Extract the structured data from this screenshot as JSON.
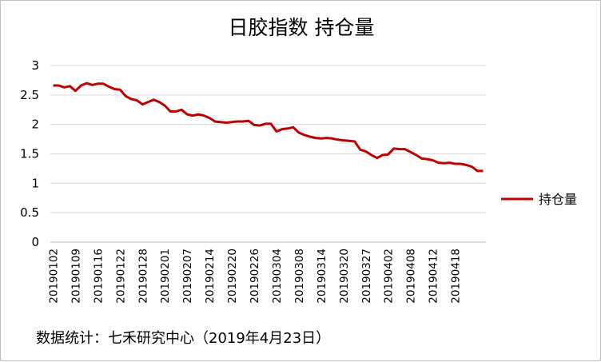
{
  "chart_data": {
    "type": "line",
    "title": "日胶指数 持仓量",
    "xlabel": "",
    "ylabel": "",
    "ylim": [
      0,
      3
    ],
    "y_ticks": [
      "0",
      "0.5",
      "1",
      "1.5",
      "2",
      "2.5",
      "3"
    ],
    "x_tick_labels": [
      "20190102",
      "20190109",
      "20190116",
      "20190122",
      "20190128",
      "20190201",
      "20190207",
      "20190214",
      "20190220",
      "20190226",
      "20190304",
      "20190308",
      "20190314",
      "20190320",
      "20190327",
      "20190402",
      "20190408",
      "20190412",
      "20190418"
    ],
    "grid": "horizontal",
    "legend_position": "right",
    "series": [
      {
        "name": "持仓量",
        "color": "#c00000",
        "values": [
          2.66,
          2.66,
          2.63,
          2.65,
          2.57,
          2.66,
          2.7,
          2.67,
          2.69,
          2.69,
          2.64,
          2.6,
          2.59,
          2.48,
          2.43,
          2.41,
          2.34,
          2.38,
          2.42,
          2.38,
          2.32,
          2.22,
          2.22,
          2.25,
          2.17,
          2.15,
          2.17,
          2.15,
          2.11,
          2.05,
          2.04,
          2.03,
          2.04,
          2.05,
          2.05,
          2.06,
          1.99,
          1.98,
          2.01,
          2.01,
          1.88,
          1.92,
          1.93,
          1.95,
          1.86,
          1.82,
          1.79,
          1.77,
          1.76,
          1.77,
          1.76,
          1.74,
          1.73,
          1.72,
          1.71,
          1.57,
          1.54,
          1.48,
          1.43,
          1.48,
          1.49,
          1.59,
          1.58,
          1.58,
          1.53,
          1.48,
          1.42,
          1.41,
          1.39,
          1.35,
          1.34,
          1.35,
          1.33,
          1.33,
          1.31,
          1.28,
          1.21,
          1.21
        ]
      }
    ]
  },
  "source_note": "数据统计：七禾研究中心（2019年4月23日）"
}
